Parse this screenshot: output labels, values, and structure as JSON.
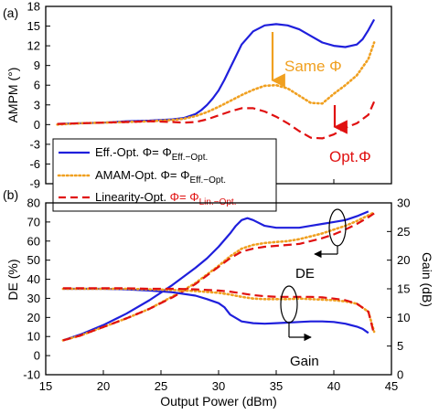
{
  "colors": {
    "eff": "#1f1fdc",
    "amam": "#f0a020",
    "lin": "#e01010",
    "axis": "#000000"
  },
  "chart_data": [
    {
      "type": "line",
      "panel_label": "(a)",
      "ylabel": "AMPM (°)",
      "xlabel": "",
      "xlim": [
        15,
        45
      ],
      "ylim": [
        -9,
        18
      ],
      "yticks": [
        "18",
        "15",
        "12",
        "9",
        "6",
        "3",
        "0",
        "-3",
        "-6",
        "-9"
      ],
      "ytick_values": [
        18,
        15,
        12,
        9,
        6,
        3,
        0,
        -3,
        -6,
        -9
      ],
      "annotations": {
        "same": "Same Φ",
        "opt": "Opt.Φ"
      },
      "legend": [
        {
          "key": "eff",
          "prefix": "Eff.-Opt. Φ= Φ",
          "sub": "Eff.−Opt."
        },
        {
          "key": "amam",
          "prefix": "AMAM-Opt. Φ= Φ",
          "sub": "Eff.−Opt."
        },
        {
          "key": "lin",
          "prefix": "Linearity-Opt. ",
          "red": "Φ= Φ",
          "sub": "Lin.−Opt."
        }
      ],
      "series": [
        {
          "key": "eff",
          "style": "solid",
          "x": [
            16,
            18,
            20,
            22,
            24,
            26,
            27,
            28,
            28.5,
            29,
            29.5,
            30,
            30.5,
            31,
            31.5,
            32,
            33,
            34,
            35,
            36,
            37,
            38,
            39,
            40,
            41,
            42,
            42.5,
            43,
            43.5
          ],
          "y": [
            0.1,
            0.2,
            0.3,
            0.5,
            0.6,
            0.8,
            1.0,
            1.6,
            2.2,
            3.0,
            4.0,
            5.2,
            6.8,
            8.6,
            10.4,
            12.2,
            14.2,
            15.1,
            15.3,
            15.1,
            14.5,
            13.5,
            12.5,
            12.0,
            11.8,
            12.2,
            13.0,
            14.4,
            16.0
          ]
        },
        {
          "key": "amam",
          "style": "dotted",
          "x": [
            16,
            18,
            20,
            22,
            24,
            26,
            27,
            28,
            29,
            30,
            31,
            32,
            33,
            34,
            35,
            36,
            37,
            38,
            39,
            40,
            41,
            42,
            43,
            43.5
          ],
          "y": [
            0.0,
            0.2,
            0.3,
            0.4,
            0.5,
            0.7,
            0.9,
            1.3,
            1.9,
            2.7,
            3.6,
            4.5,
            5.3,
            5.9,
            6.0,
            5.5,
            4.4,
            3.3,
            3.2,
            4.7,
            6.0,
            7.5,
            10.0,
            12.5
          ]
        },
        {
          "key": "lin",
          "style": "dashed",
          "x": [
            16,
            18,
            20,
            22,
            24,
            26,
            27,
            28,
            29,
            30,
            31,
            32,
            33,
            34,
            35,
            36,
            37,
            38,
            39,
            40,
            41,
            42,
            43,
            43.5
          ],
          "y": [
            0.1,
            0.2,
            0.3,
            0.4,
            0.5,
            0.4,
            0.3,
            0.4,
            0.8,
            1.4,
            2.0,
            2.5,
            2.5,
            2.0,
            1.2,
            0.2,
            -1.0,
            -2.0,
            -2.1,
            -1.5,
            -0.5,
            0.2,
            1.5,
            3.5
          ]
        }
      ]
    },
    {
      "type": "line",
      "panel_label": "(b)",
      "xlabel": "Output Power (dBm)",
      "ylabel": "DE (%)",
      "y2label": "Gain (dB)",
      "xlim": [
        15,
        45
      ],
      "ylim": [
        -10,
        80
      ],
      "y2lim": [
        0,
        30
      ],
      "xticks": [
        "15",
        "20",
        "25",
        "30",
        "35",
        "40",
        "45"
      ],
      "xtick_values": [
        15,
        20,
        25,
        30,
        35,
        40,
        45
      ],
      "yticks": [
        "80",
        "70",
        "60",
        "50",
        "40",
        "30",
        "20",
        "10",
        "0",
        "-10"
      ],
      "ytick_values": [
        80,
        70,
        60,
        50,
        40,
        30,
        20,
        10,
        0,
        -10
      ],
      "y2ticks": [
        "30",
        "25",
        "20",
        "15",
        "10",
        "5",
        "0"
      ],
      "y2tick_values": [
        30,
        25,
        20,
        15,
        10,
        5,
        0
      ],
      "annotations": {
        "de": "DE",
        "gain": "Gain"
      },
      "series": [
        {
          "key": "eff",
          "style": "solid",
          "axis": "DE",
          "x": [
            16.5,
            18,
            20,
            22,
            24,
            26,
            28,
            29,
            30,
            31,
            31.5,
            32,
            32.5,
            33,
            34,
            35,
            36,
            37,
            38,
            39,
            40,
            41,
            42,
            43
          ],
          "y": [
            8,
            11,
            16,
            22,
            29,
            37,
            46,
            51,
            57,
            64,
            68,
            71,
            72,
            71,
            68,
            67,
            67,
            67,
            68,
            69,
            70,
            71,
            73,
            75.5
          ]
        },
        {
          "key": "amam",
          "style": "dotted",
          "axis": "DE",
          "x": [
            16.5,
            18,
            20,
            22,
            24,
            26,
            28,
            30,
            31,
            32,
            33,
            34,
            35,
            36,
            37,
            38,
            39,
            40,
            41,
            42,
            43,
            43.5
          ],
          "y": [
            8,
            10.5,
            15,
            19.5,
            24.5,
            31,
            38,
            47,
            52,
            56,
            58,
            59,
            59.5,
            60,
            61,
            62.5,
            64,
            66,
            68,
            70.5,
            73.5,
            75
          ]
        },
        {
          "key": "lin",
          "style": "dashed",
          "axis": "DE",
          "x": [
            16.5,
            18,
            20,
            22,
            24,
            26,
            28,
            30,
            31,
            32,
            33,
            34,
            35,
            36,
            37,
            38,
            39,
            40,
            41,
            42,
            43,
            43.5
          ],
          "y": [
            8,
            10.5,
            15,
            19.5,
            24.5,
            30.5,
            37.5,
            46.5,
            51,
            54.5,
            56,
            57,
            57.5,
            58,
            58.5,
            60,
            61.5,
            63.5,
            66,
            69,
            72.5,
            74.5
          ]
        },
        {
          "key": "eff",
          "style": "solid",
          "axis": "Gain",
          "x": [
            16.5,
            18,
            20,
            22,
            24,
            26,
            28,
            29,
            30,
            30.5,
            31,
            32,
            33,
            34,
            35,
            36,
            37,
            38,
            39,
            40,
            41,
            42,
            42.5,
            43
          ],
          "y": [
            15,
            15,
            15,
            14.9,
            14.7,
            14.4,
            13.8,
            13.2,
            12.5,
            11.8,
            10.5,
            9.3,
            9.0,
            8.9,
            9.0,
            9.1,
            9.2,
            9.3,
            9.3,
            9.2,
            8.9,
            8.4,
            8.0,
            7.3
          ]
        },
        {
          "key": "amam",
          "style": "dotted",
          "axis": "Gain",
          "x": [
            16.5,
            18,
            20,
            22,
            24,
            26,
            28,
            30,
            31,
            32,
            33,
            34,
            35,
            36,
            37,
            38,
            39,
            40,
            41,
            42,
            43,
            43.5
          ],
          "y": [
            15,
            15,
            15,
            15,
            14.9,
            14.8,
            14.6,
            14.3,
            14.0,
            13.6,
            13.3,
            13.2,
            13.2,
            13.2,
            13.3,
            13.2,
            13.1,
            13.0,
            12.8,
            12.4,
            11.0,
            7.5
          ]
        },
        {
          "key": "lin",
          "style": "dashed",
          "axis": "Gain",
          "x": [
            16.5,
            18,
            20,
            22,
            24,
            26,
            28,
            30,
            31,
            32,
            33,
            34,
            35,
            36,
            37,
            38,
            39,
            40,
            41,
            42,
            43,
            43.5
          ],
          "y": [
            15.1,
            15.1,
            15.1,
            15.1,
            15,
            15,
            14.9,
            14.7,
            14.5,
            14.2,
            13.9,
            13.7,
            13.6,
            13.6,
            13.6,
            13.6,
            13.5,
            13.3,
            13.0,
            12.4,
            11.0,
            7.0
          ]
        }
      ]
    }
  ]
}
